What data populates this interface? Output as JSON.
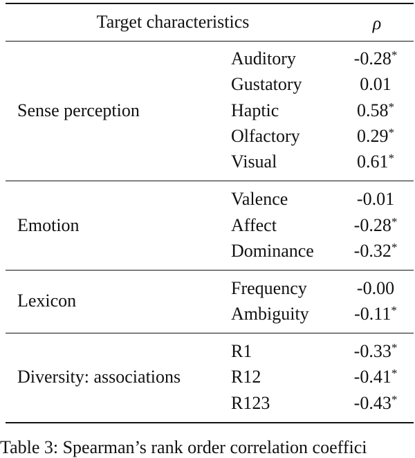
{
  "table": {
    "header": {
      "characteristics": "Target characteristics",
      "rho": "ρ"
    },
    "groups": [
      {
        "label": "Sense perception",
        "rows": [
          {
            "name": "Auditory",
            "rho": "-0.28",
            "note": "*"
          },
          {
            "name": "Gustatory",
            "rho": "0.01"
          },
          {
            "name": "Haptic",
            "rho": "0.58",
            "note": "*"
          },
          {
            "name": "Olfactory",
            "rho": "0.29",
            "note": "*"
          },
          {
            "name": "Visual",
            "rho": "0.61",
            "note": "*"
          }
        ]
      },
      {
        "label": "Emotion",
        "rows": [
          {
            "name": "Valence",
            "rho": "-0.01"
          },
          {
            "name": "Affect",
            "rho": "-0.28",
            "note": "*"
          },
          {
            "name": "Dominance",
            "rho": "-0.32",
            "note": "*"
          }
        ]
      },
      {
        "label": "Lexicon",
        "rows": [
          {
            "name": "Frequency",
            "rho": "-0.00"
          },
          {
            "name": "Ambiguity",
            "rho": "-0.11",
            "note": "*"
          }
        ]
      },
      {
        "label": "Diversity: associations",
        "rows": [
          {
            "name": "R1",
            "rho": "-0.33",
            "note": "*"
          },
          {
            "name": "R12",
            "rho": "-0.41",
            "note": "*"
          },
          {
            "name": "R123",
            "rho": "-0.43",
            "note": "*"
          }
        ]
      }
    ]
  },
  "caption": "Table 3: Spearman’s rank order correlation coeffici"
}
